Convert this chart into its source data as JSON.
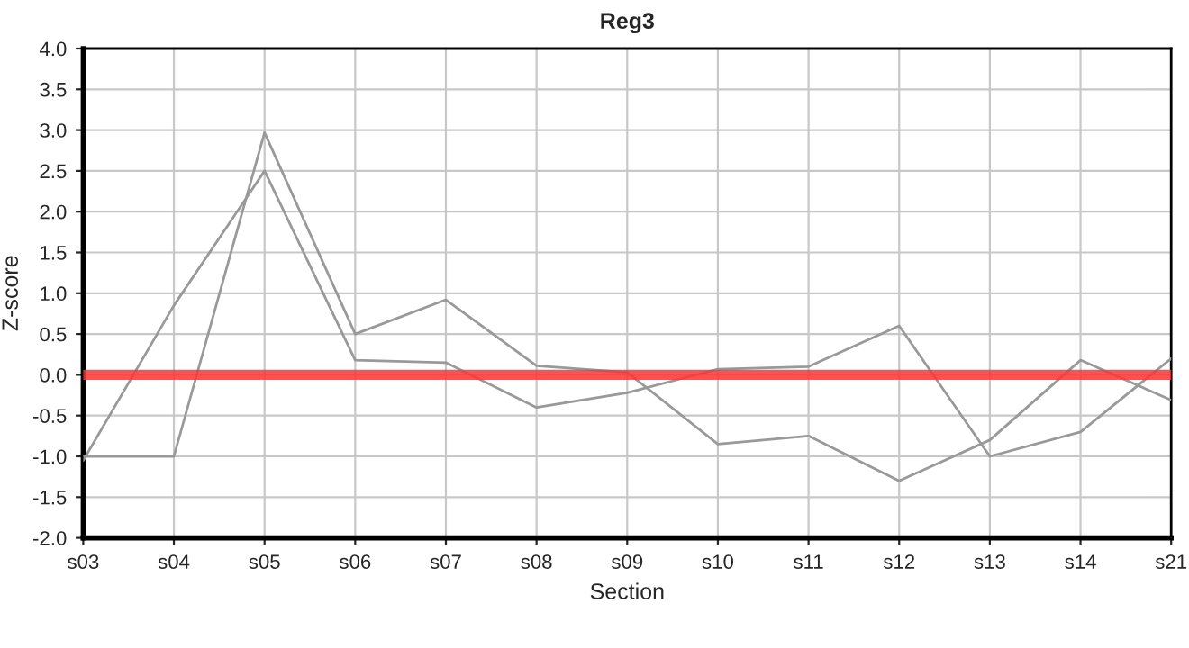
{
  "chart_data": {
    "type": "line",
    "title": "Reg3",
    "xlabel": "Section",
    "ylabel": "Z-score",
    "categories": [
      "s03",
      "s04",
      "s05",
      "s06",
      "s07",
      "s08",
      "s09",
      "s10",
      "s11",
      "s12",
      "s13",
      "s14",
      "s21"
    ],
    "series": [
      {
        "color": "#999999",
        "values": [
          -1.0,
          -1.0,
          2.97,
          0.5,
          0.92,
          0.11,
          0.03,
          -0.85,
          -0.75,
          -1.3,
          -0.8,
          0.18,
          -0.31
        ]
      },
      {
        "color": "#999999",
        "values": [
          -1.05,
          0.85,
          2.5,
          0.18,
          0.15,
          -0.4,
          -0.22,
          0.07,
          0.1,
          0.6,
          -1.0,
          -0.7,
          0.2
        ]
      }
    ],
    "ylim": [
      -2.0,
      4.0
    ],
    "yticks": [
      {
        "value": -2.0,
        "label": "-2.0"
      },
      {
        "value": -1.5,
        "label": "-1.5"
      },
      {
        "value": -1.0,
        "label": "-1.0"
      },
      {
        "value": -0.5,
        "label": "-0.5"
      },
      {
        "value": 0.0,
        "label": "0.0"
      },
      {
        "value": 0.5,
        "label": "0.5"
      },
      {
        "value": 1.0,
        "label": "1.0"
      },
      {
        "value": 1.5,
        "label": "1.5"
      },
      {
        "value": 2.0,
        "label": "2.0"
      },
      {
        "value": 2.5,
        "label": "2.5"
      },
      {
        "value": 3.0,
        "label": "3.0"
      },
      {
        "value": 3.5,
        "label": "3.5"
      },
      {
        "value": 4.0,
        "label": "4.0"
      }
    ],
    "ref_lines": [
      {
        "axis": "y",
        "value": 0.0,
        "color": "#ff3333"
      }
    ],
    "grid": true,
    "legend": false,
    "marker": "none",
    "line_style": "solid"
  }
}
